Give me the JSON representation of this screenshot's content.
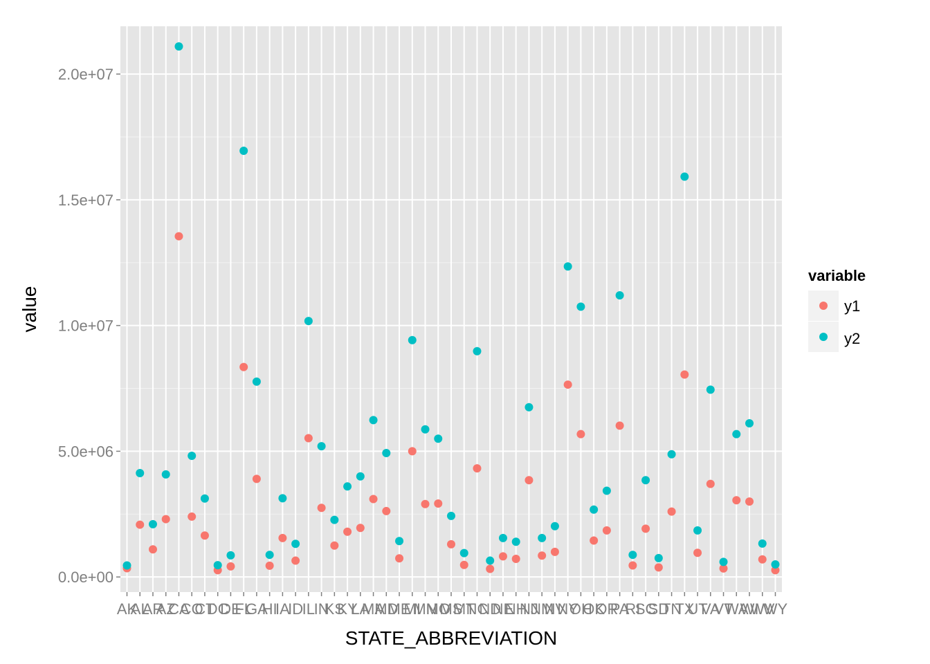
{
  "chart_data": {
    "type": "scatter",
    "xlabel": "STATE_ABBREVIATION",
    "ylabel": "value",
    "categories": [
      "AK",
      "AL",
      "AR",
      "AZ",
      "CA",
      "CO",
      "CT",
      "DC",
      "DE",
      "FL",
      "GA",
      "HI",
      "IA",
      "ID",
      "IL",
      "IN",
      "KS",
      "KY",
      "LA",
      "MA",
      "MD",
      "ME",
      "MI",
      "MN",
      "MO",
      "MS",
      "MT",
      "NC",
      "ND",
      "NE",
      "NH",
      "NJ",
      "NM",
      "NV",
      "NY",
      "OH",
      "OK",
      "OR",
      "PA",
      "RI",
      "SC",
      "SD",
      "TN",
      "TX",
      "UT",
      "VA",
      "VT",
      "WA",
      "WI",
      "WV",
      "WY"
    ],
    "ylim": [
      -600000,
      21900000
    ],
    "yticks": [
      0,
      5000000,
      10000000,
      15000000,
      20000000
    ],
    "ytick_labels": [
      "0.0e+00",
      "5.0e+06",
      "1.0e+07",
      "1.5e+07",
      "2.0e+07"
    ],
    "grid": true,
    "legend": {
      "title": "variable",
      "position": "right"
    },
    "series": [
      {
        "name": "y1",
        "color": "#F8766D",
        "values": [
          350000,
          2080000,
          1100000,
          2300000,
          13550000,
          2400000,
          1650000,
          270000,
          420000,
          8350000,
          3900000,
          450000,
          1550000,
          650000,
          5520000,
          2750000,
          1250000,
          1800000,
          1950000,
          3100000,
          2620000,
          740000,
          5000000,
          2900000,
          2920000,
          1300000,
          480000,
          4320000,
          320000,
          820000,
          720000,
          3850000,
          850000,
          1000000,
          7650000,
          5680000,
          1450000,
          1850000,
          6020000,
          460000,
          1920000,
          380000,
          2600000,
          8050000,
          960000,
          3700000,
          340000,
          3050000,
          3000000,
          700000,
          270000
        ]
      },
      {
        "name": "y2",
        "color": "#00BFC4",
        "values": [
          460000,
          4130000,
          2100000,
          4080000,
          21100000,
          4820000,
          3120000,
          470000,
          860000,
          16950000,
          7770000,
          880000,
          3130000,
          1320000,
          10180000,
          5200000,
          2270000,
          3600000,
          4000000,
          6240000,
          4930000,
          1430000,
          9420000,
          5870000,
          5500000,
          2430000,
          950000,
          8980000,
          650000,
          1550000,
          1400000,
          6750000,
          1550000,
          2020000,
          12350000,
          10750000,
          2680000,
          3430000,
          11200000,
          880000,
          3850000,
          750000,
          4880000,
          15920000,
          1850000,
          7450000,
          600000,
          5680000,
          6110000,
          1330000,
          500000
        ]
      }
    ]
  }
}
